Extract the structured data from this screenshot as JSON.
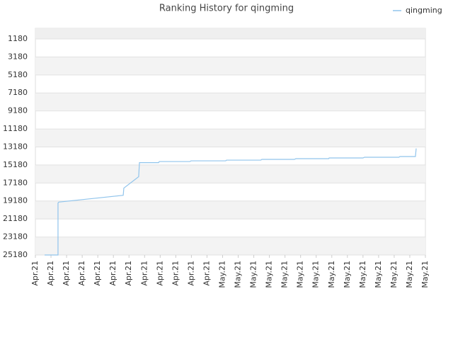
{
  "chart_data": {
    "type": "line",
    "title": "Ranking History for qingming",
    "series": [
      {
        "name": "qingming",
        "color": "#90c4ec",
        "x": [
          0.59,
          1.45,
          1.45,
          1.5,
          5.63,
          5.67,
          6.62,
          6.67,
          7.9,
          7.94,
          9.9,
          9.98,
          12.2,
          12.25,
          14.45,
          14.52,
          16.6,
          16.7,
          18.8,
          18.83,
          21.0,
          21.1,
          23.3,
          23.37,
          24.36,
          24.41
        ],
        "values": [
          25180,
          25180,
          19400,
          19300,
          18550,
          17750,
          16480,
          14920,
          14920,
          14800,
          14800,
          14720,
          14720,
          14640,
          14640,
          14560,
          14560,
          14480,
          14480,
          14400,
          14400,
          14320,
          14320,
          14240,
          14240,
          13340
        ]
      }
    ],
    "xlim": [
      0,
      25
    ],
    "xticks": [
      {
        "value": 0,
        "label": "Apr.21"
      },
      {
        "value": 1,
        "label": "Apr.21"
      },
      {
        "value": 2,
        "label": "Apr.21"
      },
      {
        "value": 3,
        "label": "Apr.21"
      },
      {
        "value": 4,
        "label": "Apr.21"
      },
      {
        "value": 5,
        "label": "Apr.21"
      },
      {
        "value": 6,
        "label": "Apr.21"
      },
      {
        "value": 7,
        "label": "Apr.21"
      },
      {
        "value": 8,
        "label": "Apr.21"
      },
      {
        "value": 9,
        "label": "Apr.21"
      },
      {
        "value": 10,
        "label": "Apr.21"
      },
      {
        "value": 11,
        "label": "Apr.21"
      },
      {
        "value": 12,
        "label": "May.21"
      },
      {
        "value": 13,
        "label": "May.21"
      },
      {
        "value": 14,
        "label": "May.21"
      },
      {
        "value": 15,
        "label": "May.21"
      },
      {
        "value": 16,
        "label": "May.21"
      },
      {
        "value": 17,
        "label": "May.21"
      },
      {
        "value": 18,
        "label": "May.21"
      },
      {
        "value": 19,
        "label": "May.21"
      },
      {
        "value": 20,
        "label": "May.21"
      },
      {
        "value": 21,
        "label": "May.21"
      },
      {
        "value": 22,
        "label": "May.21"
      },
      {
        "value": 23,
        "label": "May.21"
      },
      {
        "value": 24,
        "label": "May.21"
      },
      {
        "value": 25,
        "label": "May.21"
      }
    ],
    "ylim": [
      25180,
      0
    ],
    "yticks": [
      1180,
      3180,
      5180,
      7180,
      9180,
      11180,
      13180,
      15180,
      17180,
      19180,
      21180,
      23180,
      25180
    ],
    "grid": true,
    "legend": "top-right"
  }
}
